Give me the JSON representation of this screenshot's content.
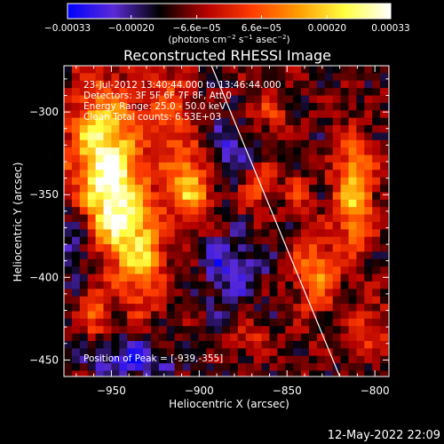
{
  "chart_data": {
    "type": "heatmap",
    "title": "Reconstructed RHESSI Image",
    "xlabel": "Heliocentric X (arcsec)",
    "ylabel": "Heliocentric Y (arcsec)",
    "xlim": [
      -977,
      -792
    ],
    "ylim": [
      -460,
      -272
    ],
    "x_ticks": [
      -950,
      -900,
      -850,
      -800
    ],
    "x_tick_labels": [
      "−950",
      "−900",
      "−850",
      "−800"
    ],
    "y_ticks": [
      -300,
      -350,
      -400,
      -450
    ],
    "y_tick_labels": [
      "−300",
      "−350",
      "−400",
      "−450"
    ],
    "colorbar": {
      "range": [
        -0.00033,
        0.00033
      ],
      "colormap": "blue-purple-black-red-orange-yellow-white",
      "colors": [
        "#0000ff",
        "#5a2ad6",
        "#000000",
        "#b40000",
        "#ff3c00",
        "#ff9c00",
        "#ffff40",
        "#ffffff"
      ],
      "ticks": [
        -0.00033,
        -0.0002,
        -6.6e-05,
        6.6e-05,
        0.0002,
        0.00033
      ],
      "tick_labels": [
        "−0.00033",
        "−0.00020",
        "−6.6e−05",
        "6.6e−05",
        "0.00020",
        "0.00033"
      ],
      "units": {
        "prefix": "(photons cm",
        "sup1": "−2",
        "mid1": " s",
        "sup2": "−1",
        "mid2": " asec",
        "sup3": "−2",
        "suffix": ")"
      }
    },
    "annotations": {
      "time_range": "23-Jul-2012 13:40:44.000 to 13:46:44.000",
      "detectors": "Detectors: 3F 5F 6F 7F 8F, Att 0",
      "energy": "Energy Range: 25.0 - 50.0 keV",
      "clean": "Clean     Total counts: 6.53E+03",
      "peak": "Position of Peak = [-939,-355]"
    },
    "peak_position": [
      -939,
      -355
    ],
    "limb_line": [
      [
        -893,
        -272
      ],
      [
        -820,
        -460
      ]
    ],
    "sources": [
      {
        "x": -955,
        "y": -320,
        "rx": 14,
        "ry": 28,
        "amp": 0.00033
      },
      {
        "x": -948,
        "y": -360,
        "rx": 12,
        "ry": 22,
        "amp": 0.0003
      },
      {
        "x": -932,
        "y": -388,
        "rx": 10,
        "ry": 22,
        "amp": 0.00024
      },
      {
        "x": -960,
        "y": -420,
        "rx": 6,
        "ry": 12,
        "amp": 0.00018
      },
      {
        "x": -905,
        "y": -345,
        "rx": 9,
        "ry": 16,
        "amp": 0.00028
      },
      {
        "x": -918,
        "y": -300,
        "rx": 9,
        "ry": 22,
        "amp": 0.00016
      },
      {
        "x": -862,
        "y": -302,
        "rx": 9,
        "ry": 9,
        "amp": 0.00012
      },
      {
        "x": -867,
        "y": -345,
        "rx": 7,
        "ry": 12,
        "amp": 0.00016
      },
      {
        "x": -843,
        "y": -348,
        "rx": 6,
        "ry": 8,
        "amp": 0.00012
      },
      {
        "x": -812,
        "y": -350,
        "rx": 8,
        "ry": 24,
        "amp": 0.0003
      },
      {
        "x": -834,
        "y": -398,
        "rx": 9,
        "ry": 16,
        "amp": 0.00022
      },
      {
        "x": -803,
        "y": -430,
        "rx": 8,
        "ry": 12,
        "amp": 0.00014
      },
      {
        "x": -873,
        "y": -437,
        "rx": 8,
        "ry": 7,
        "amp": 0.00011
      },
      {
        "x": -900,
        "y": -400,
        "rx": 5,
        "ry": 6,
        "amp": 8e-05
      },
      {
        "x": -940,
        "y": -450,
        "rx": 18,
        "ry": 8,
        "amp": -0.00016
      },
      {
        "x": -885,
        "y": -395,
        "rx": 14,
        "ry": 14,
        "amp": -0.00015
      },
      {
        "x": -880,
        "y": -325,
        "rx": 12,
        "ry": 14,
        "amp": -0.00012
      },
      {
        "x": -970,
        "y": -380,
        "rx": 10,
        "ry": 20,
        "amp": -0.00012
      }
    ]
  },
  "footer": {
    "timestamp": "12-May-2022 22:09"
  }
}
